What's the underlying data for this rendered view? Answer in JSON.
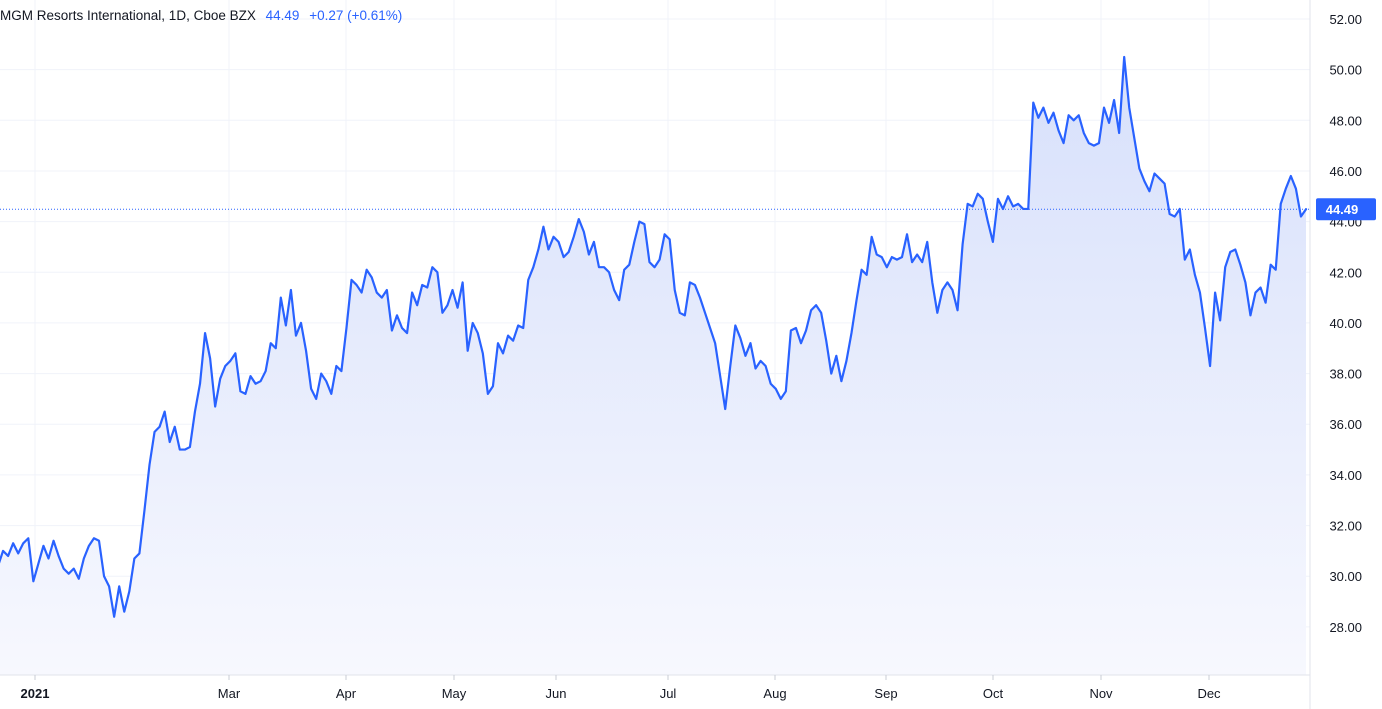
{
  "legend": {
    "title": "MGM Resorts International, 1D, Cboe BZX",
    "price": "44.49",
    "change": "+0.27 (+0.61%)"
  },
  "colors": {
    "line": "#2962ff",
    "area_top": "#d7e0fb",
    "area_bottom": "#f7f8fe",
    "grid": "#f0f3fa",
    "last_label_bg": "#2962ff",
    "current_price_line": "#2962ff"
  },
  "chart_data": {
    "type": "area",
    "title": "MGM Resorts International, 1D, Cboe BZX",
    "xlabel": "",
    "ylabel": "",
    "x_ticks": [
      "2021",
      "Mar",
      "Apr",
      "May",
      "Jun",
      "Jul",
      "Aug",
      "Sep",
      "Oct",
      "Nov",
      "Dec"
    ],
    "y_ticks": [
      "28.00",
      "30.00",
      "32.00",
      "34.00",
      "36.00",
      "38.00",
      "40.00",
      "42.00",
      "44.00",
      "46.00",
      "48.00",
      "50.00",
      "52.00"
    ],
    "ylim": [
      26.1,
      52.75
    ],
    "last_value": "44.49",
    "grid": true,
    "series": [
      {
        "values": [
          30.4,
          31.0,
          30.8,
          31.3,
          30.9,
          31.3,
          31.5,
          29.8,
          30.5,
          31.2,
          30.7,
          31.4,
          30.8,
          30.3,
          30.1,
          30.3,
          29.9,
          30.7,
          31.2,
          31.5,
          31.4,
          30.0,
          29.6,
          28.4,
          29.6,
          28.6,
          29.4,
          30.7,
          30.9,
          32.6,
          34.4,
          35.7,
          35.9,
          36.5,
          35.3,
          35.9,
          35.0,
          35.0,
          35.1,
          36.5,
          37.6,
          39.6,
          38.6,
          36.7,
          37.8,
          38.3,
          38.5,
          38.8,
          37.3,
          37.2,
          37.9,
          37.6,
          37.7,
          38.1,
          39.2,
          39.0,
          41.0,
          39.9,
          41.3,
          39.5,
          40.0,
          38.9,
          37.4,
          37.0,
          38.0,
          37.7,
          37.2,
          38.3,
          38.1,
          39.8,
          41.7,
          41.5,
          41.2,
          42.1,
          41.8,
          41.2,
          41.0,
          41.3,
          39.7,
          40.3,
          39.8,
          39.6,
          41.2,
          40.7,
          41.5,
          41.4,
          42.2,
          42.0,
          40.4,
          40.7,
          41.3,
          40.6,
          41.6,
          38.9,
          40.0,
          39.6,
          38.8,
          37.2,
          37.5,
          39.2,
          38.8,
          39.5,
          39.3,
          39.9,
          39.8,
          41.7,
          42.2,
          42.9,
          43.8,
          42.9,
          43.4,
          43.2,
          42.6,
          42.8,
          43.4,
          44.1,
          43.6,
          42.7,
          43.2,
          42.2,
          42.2,
          42.0,
          41.3,
          40.9,
          42.1,
          42.3,
          43.2,
          44.0,
          43.9,
          42.4,
          42.2,
          42.5,
          43.5,
          43.3,
          41.3,
          40.4,
          40.3,
          41.6,
          41.5,
          41.0,
          40.4,
          39.8,
          39.2,
          37.9,
          36.6,
          38.3,
          39.9,
          39.4,
          38.7,
          39.2,
          38.2,
          38.5,
          38.3,
          37.6,
          37.4,
          37.0,
          37.3,
          39.7,
          39.8,
          39.2,
          39.7,
          40.5,
          40.7,
          40.4,
          39.3,
          38.0,
          38.7,
          37.7,
          38.5,
          39.6,
          40.9,
          42.1,
          41.9,
          43.4,
          42.7,
          42.6,
          42.2,
          42.6,
          42.5,
          42.6,
          43.5,
          42.4,
          42.7,
          42.4,
          43.2,
          41.6,
          40.4,
          41.3,
          41.6,
          41.3,
          40.5,
          43.1,
          44.7,
          44.6,
          45.1,
          44.9,
          44.0,
          43.2,
          44.9,
          44.5,
          45.0,
          44.6,
          44.7,
          44.5,
          44.5,
          48.7,
          48.1,
          48.5,
          47.9,
          48.3,
          47.6,
          47.1,
          48.2,
          48.0,
          48.2,
          47.5,
          47.1,
          47.0,
          47.1,
          48.5,
          47.9,
          48.8,
          47.5,
          50.5,
          48.5,
          47.3,
          46.1,
          45.6,
          45.2,
          45.9,
          45.7,
          45.5,
          44.3,
          44.2,
          44.5,
          42.5,
          42.9,
          41.9,
          41.2,
          39.8,
          38.3,
          41.2,
          40.1,
          42.2,
          42.8,
          42.9,
          42.3,
          41.6,
          40.3,
          41.2,
          41.4,
          40.8,
          42.3,
          42.1,
          44.7,
          45.3,
          45.8,
          45.3,
          44.2,
          44.49
        ]
      }
    ]
  }
}
